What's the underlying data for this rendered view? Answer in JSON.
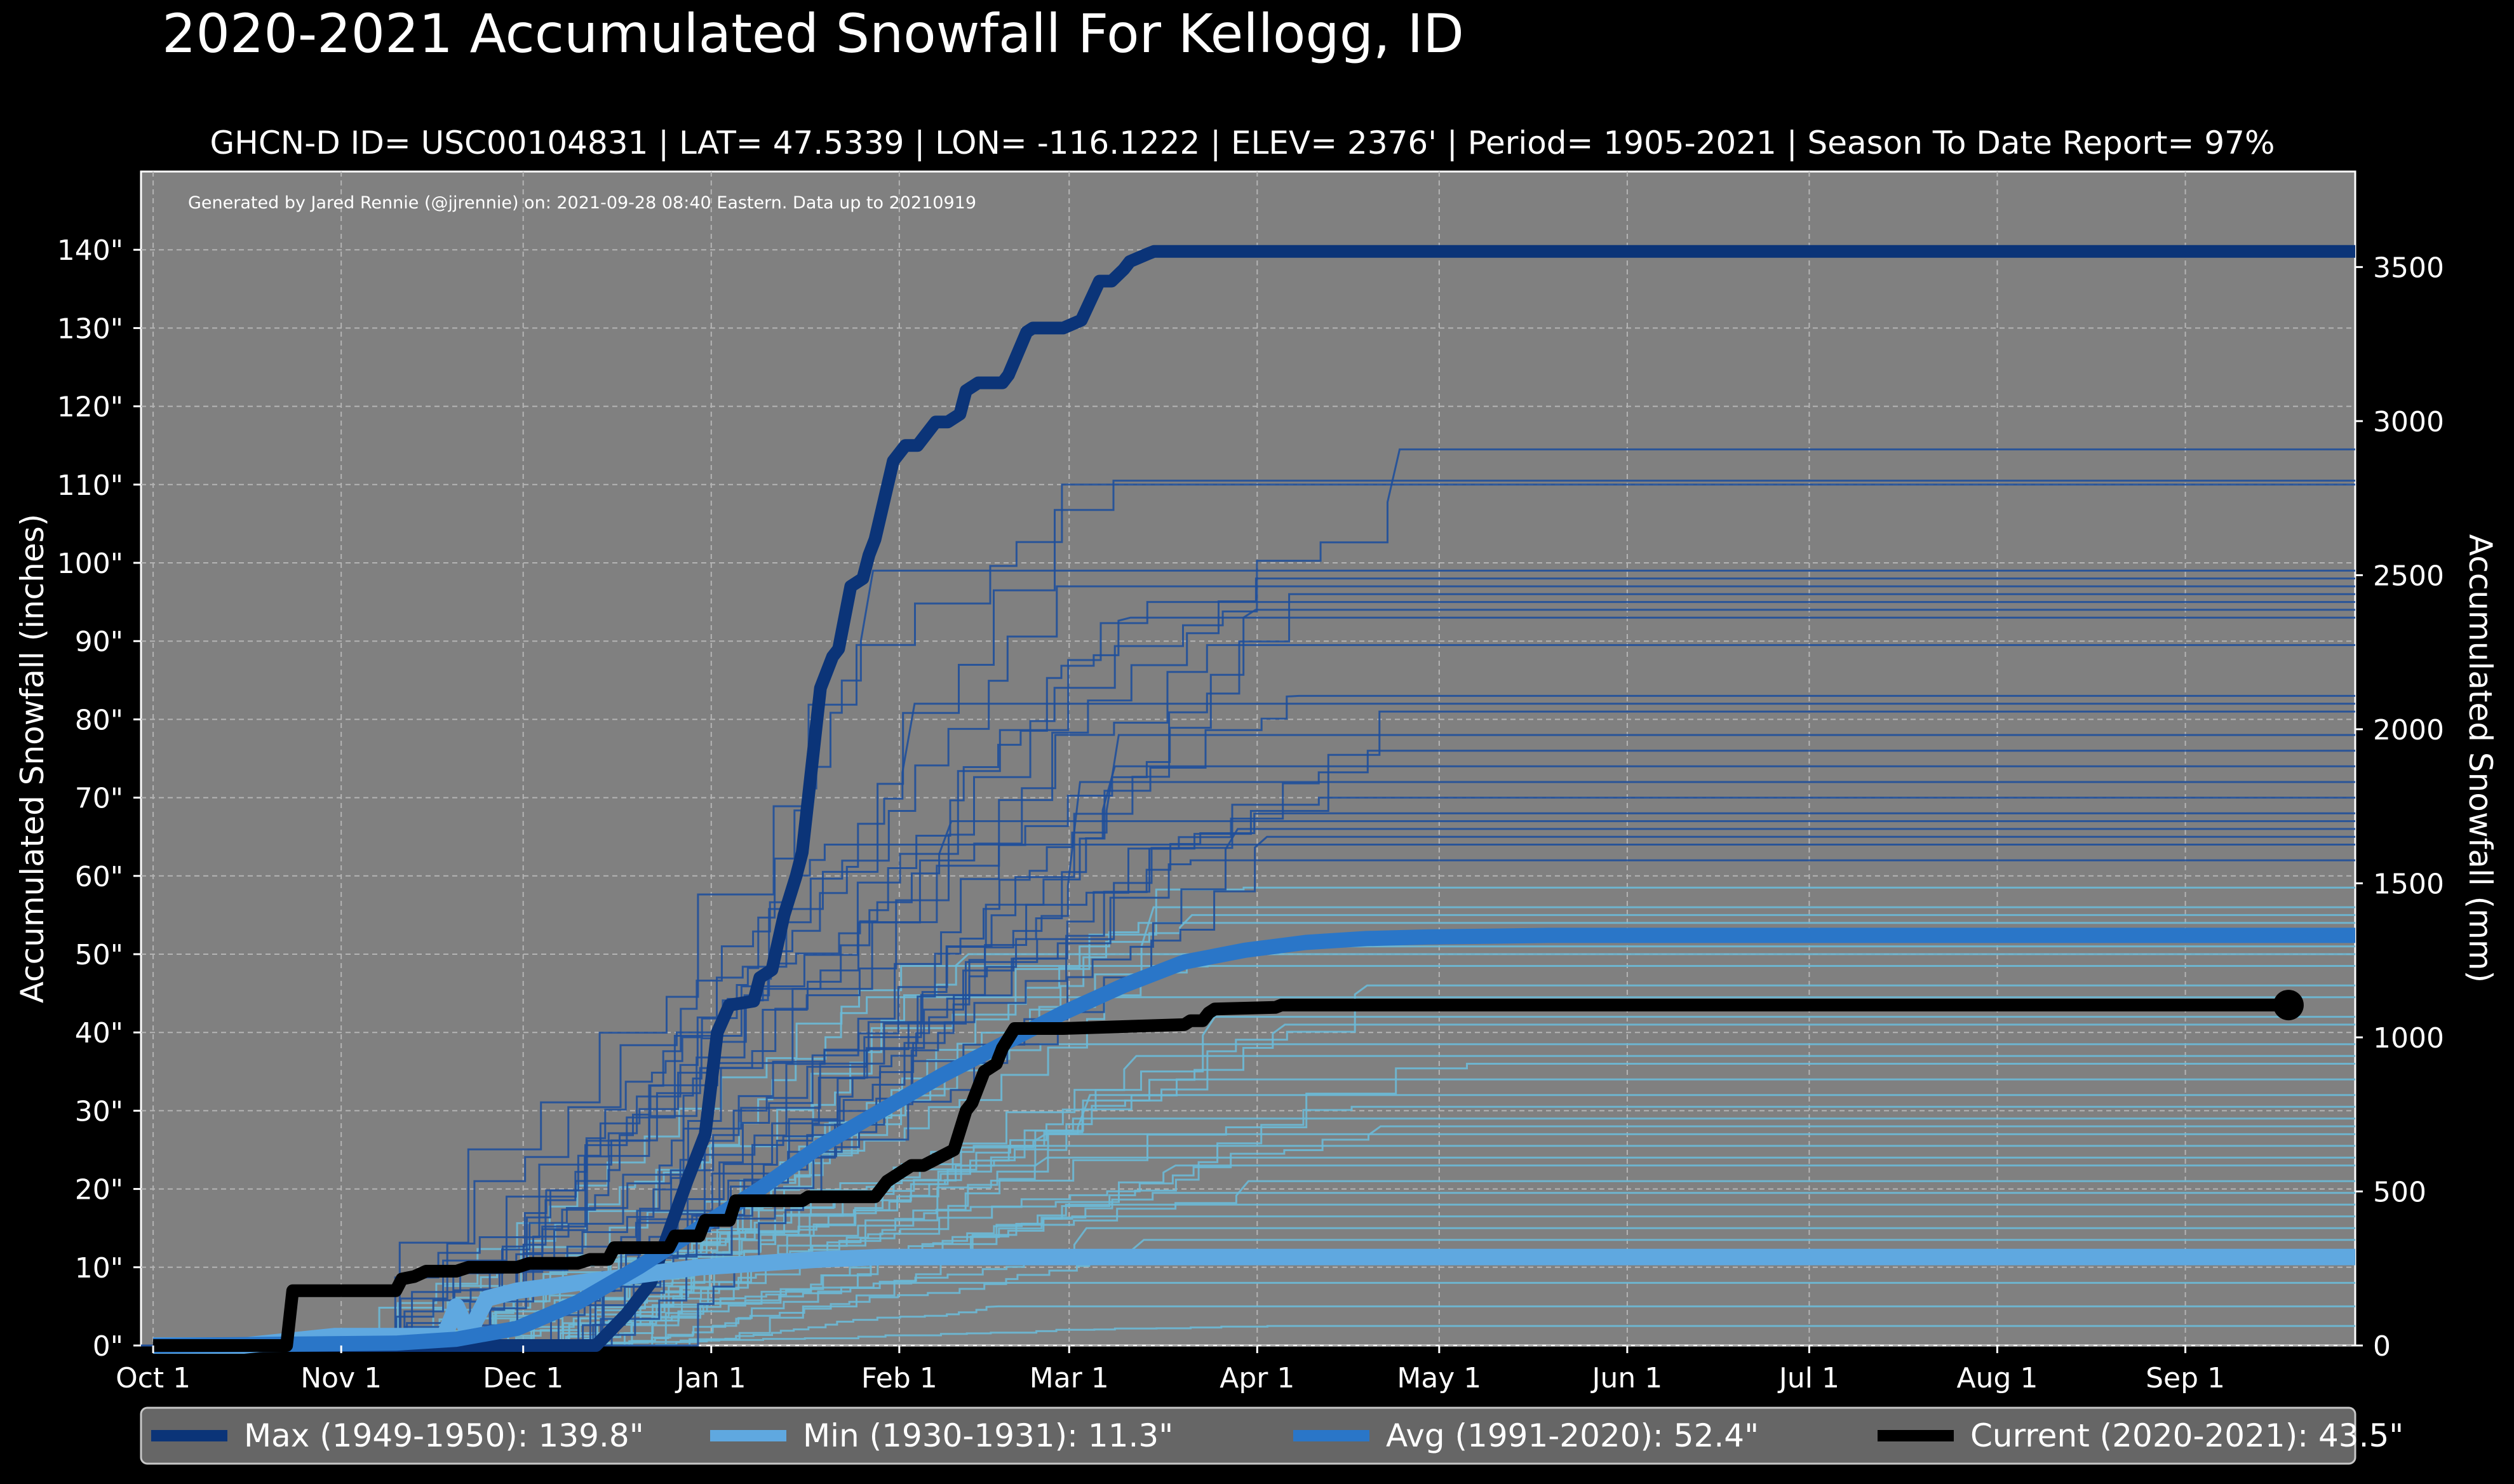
{
  "chart_data": {
    "type": "line",
    "title": "2020-2021 Accumulated Snowfall For Kellogg, ID",
    "subtitle": "GHCN-D ID= USC00104831 | LAT= 47.5339 | LON= -116.1222 | ELEV= 2376' | Period= 1905-2021 | Season To Date Report= 97%",
    "credit": "Generated by Jared Rennie (@jjrennie) on: 2021-09-28 08:40 Eastern. Data up to 20210919",
    "ylabel": "Accumulated Snowfall (inches)",
    "y2label": "Accumulated Snowfall (mm)",
    "ylim": [
      0,
      150
    ],
    "y2lim": [
      0,
      3810
    ],
    "xlim": [
      -2,
      363
    ],
    "grid": true,
    "legend_position": "bottom",
    "x_ticks": [
      {
        "label": "Oct 1",
        "day": 0
      },
      {
        "label": "Nov 1",
        "day": 31
      },
      {
        "label": "Dec 1",
        "day": 61
      },
      {
        "label": "Jan 1",
        "day": 92
      },
      {
        "label": "Feb 1",
        "day": 123
      },
      {
        "label": "Mar 1",
        "day": 151
      },
      {
        "label": "Apr 1",
        "day": 182
      },
      {
        "label": "May 1",
        "day": 212
      },
      {
        "label": "Jun 1",
        "day": 243
      },
      {
        "label": "Jul 1",
        "day": 273
      },
      {
        "label": "Aug 1",
        "day": 304
      },
      {
        "label": "Sep 1",
        "day": 335
      }
    ],
    "y_ticks": [
      {
        "label": "0\"",
        "value": 0
      },
      {
        "label": "10\"",
        "value": 10
      },
      {
        "label": "20\"",
        "value": 20
      },
      {
        "label": "30\"",
        "value": 30
      },
      {
        "label": "40\"",
        "value": 40
      },
      {
        "label": "50\"",
        "value": 50
      },
      {
        "label": "60\"",
        "value": 60
      },
      {
        "label": "70\"",
        "value": 70
      },
      {
        "label": "80\"",
        "value": 80
      },
      {
        "label": "90\"",
        "value": 90
      },
      {
        "label": "100\"",
        "value": 100
      },
      {
        "label": "110\"",
        "value": 110
      },
      {
        "label": "120\"",
        "value": 120
      },
      {
        "label": "130\"",
        "value": 130
      },
      {
        "label": "140\"",
        "value": 140
      }
    ],
    "y2_ticks": [
      {
        "label": "0",
        "value": 0
      },
      {
        "label": "500",
        "value": 500
      },
      {
        "label": "1000",
        "value": 1000
      },
      {
        "label": "1500",
        "value": 1500
      },
      {
        "label": "2000",
        "value": 2000
      },
      {
        "label": "2500",
        "value": 2500
      },
      {
        "label": "3000",
        "value": 3000
      },
      {
        "label": "3500",
        "value": 3500
      }
    ],
    "historical_final_totals_dark": [
      114.5,
      110.5,
      110.0,
      99.0,
      98.0,
      97.0,
      96.0,
      95.0,
      94.0,
      93.0,
      89.5,
      83.0,
      82.0,
      81.0,
      78.0,
      76.0,
      74.0,
      72.0,
      70.0,
      68.0,
      67.0,
      66.0,
      65.0,
      64.0,
      62.0
    ],
    "historical_final_totals_light": [
      58.5,
      56.0,
      55.0,
      54.0,
      51.0,
      50.0,
      48.5,
      46.0,
      44.5,
      42.0,
      41.0,
      38.5,
      37.0,
      36.0,
      34.0,
      32.0,
      30.5,
      29.0,
      28.0,
      27.0,
      25.5,
      24.0,
      23.0,
      21.0,
      19.5,
      18.0,
      16.5,
      15.0,
      13.5,
      8.0,
      5.0,
      2.5
    ],
    "series": [
      {
        "name": "Max (1949-1950):  139.8\"",
        "color": "#0b3478",
        "x": [
          0,
          50,
          63,
          73,
          78,
          82,
          88,
          91,
          93,
          95,
          99,
          100,
          102,
          104,
          106,
          107,
          108,
          110,
          112,
          113,
          115,
          117,
          118,
          119,
          122,
          124,
          126,
          129,
          131,
          133,
          134,
          136,
          140,
          141,
          144,
          145,
          148,
          150,
          153,
          156,
          158,
          160,
          161,
          164,
          165,
          365
        ],
        "y": [
          0,
          0,
          0,
          0,
          4,
          8,
          21,
          27,
          40,
          43.5,
          44,
          47,
          48,
          55,
          60,
          63,
          70,
          84,
          88,
          89,
          97,
          98,
          101,
          103,
          113,
          115,
          115,
          118,
          118,
          119,
          122,
          123,
          123,
          124,
          129.5,
          130,
          130,
          130,
          131,
          136,
          136,
          137.5,
          138.5,
          139.5,
          139.8,
          139.8
        ]
      },
      {
        "name": "Min (1930-1931):   11.3\"",
        "color": "#5fa8e0",
        "x": [
          0,
          15,
          30,
          48,
          50,
          52,
          55,
          60,
          70,
          80,
          90,
          100,
          110,
          120,
          365
        ],
        "y": [
          0,
          0,
          1.2,
          1.2,
          5,
          1.5,
          6,
          7,
          8,
          9,
          10,
          10.5,
          11,
          11.3,
          11.3
        ]
      },
      {
        "name": "Avg (1991-2020):   52.4\"",
        "color": "#2a76c8",
        "x": [
          0,
          40,
          50,
          60,
          70,
          80,
          90,
          100,
          110,
          120,
          130,
          140,
          150,
          160,
          170,
          180,
          190,
          200,
          210,
          220,
          230,
          365
        ],
        "y": [
          0,
          0.3,
          0.8,
          2.2,
          5.5,
          10,
          15,
          20,
          25.5,
          30,
          34.5,
          38.5,
          42.5,
          46,
          49,
          50.5,
          51.5,
          52,
          52.2,
          52.3,
          52.4,
          52.4
        ]
      },
      {
        "name": "Current (2020-2021):   43.5\"",
        "color": "#000000",
        "x": [
          0,
          22,
          23,
          40,
          41,
          43,
          45,
          50,
          52,
          60,
          62,
          70,
          72,
          75,
          76,
          80,
          85,
          86,
          90,
          91,
          95,
          96,
          107,
          108,
          110,
          113,
          119,
          120,
          121,
          123,
          125,
          127,
          132,
          134,
          135,
          136,
          137,
          139,
          140,
          142,
          145,
          150,
          170,
          171,
          173,
          174,
          175,
          185,
          186,
          352
        ],
        "y": [
          0,
          0,
          7,
          7,
          8.5,
          8.8,
          9.5,
          9.5,
          10,
          10,
          10.5,
          10.5,
          11,
          11,
          12.5,
          12.5,
          12.5,
          14,
          14,
          16,
          16,
          18.5,
          18.5,
          19,
          19,
          19,
          19,
          20,
          21,
          22,
          23,
          23,
          25,
          30,
          31,
          33,
          35,
          36,
          38,
          40.5,
          40.5,
          40.5,
          41,
          41.5,
          41.5,
          42.5,
          43,
          43.2,
          43.5,
          43.5
        ]
      }
    ]
  }
}
